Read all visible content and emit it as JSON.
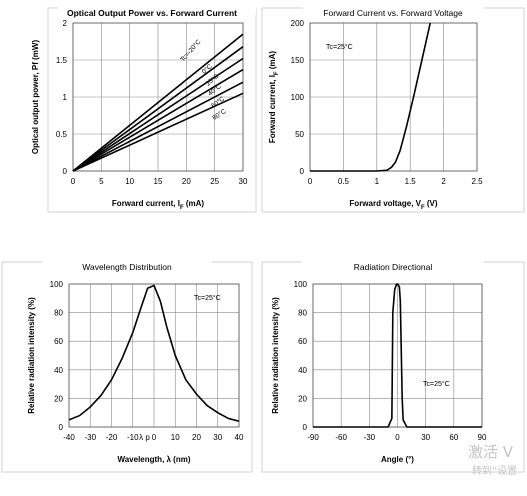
{
  "chart_data": [
    {
      "type": "line",
      "title": "Optical Output Power vs. Forward Current",
      "xlabel": "Forward current, I",
      "xlabel_sub": "F",
      "xlabel_tail": " (mA)",
      "ylabel": "Optical output power, Pf (mW)",
      "xlim": [
        0,
        30
      ],
      "ylim": [
        0,
        2
      ],
      "xticks": [
        "0",
        "5",
        "10",
        "15",
        "20",
        "25",
        "30"
      ],
      "yticks": [
        "0",
        "0.5",
        "1",
        "1.5",
        "2"
      ],
      "grid": true,
      "series": [
        {
          "name": "Tc=-20°C",
          "x": [
            0,
            30
          ],
          "y": [
            0,
            1.85
          ]
        },
        {
          "name": "0°C",
          "x": [
            0,
            30
          ],
          "y": [
            0,
            1.68
          ]
        },
        {
          "name": "25°C",
          "x": [
            0,
            30
          ],
          "y": [
            0,
            1.52
          ]
        },
        {
          "name": "40°C",
          "x": [
            0,
            30
          ],
          "y": [
            0,
            1.37
          ]
        },
        {
          "name": "60°C",
          "x": [
            0,
            30
          ],
          "y": [
            0,
            1.2
          ]
        },
        {
          "name": "80°C",
          "x": [
            0,
            30
          ],
          "y": [
            0,
            1.05
          ]
        }
      ]
    },
    {
      "type": "line",
      "title": "Forward Current vs. Forward Voltage",
      "xlabel": "Forward voltage, V",
      "xlabel_sub": "F",
      "xlabel_tail": " (V)",
      "ylabel": "Forward current, I",
      "ylabel_sub": "F",
      "ylabel_tail": " (mA)",
      "annotation": "Tc=25°C",
      "xlim": [
        0,
        2.5
      ],
      "ylim": [
        0,
        200
      ],
      "xticks": [
        "0",
        "0.5",
        "1",
        "1.5",
        "2",
        "2.5"
      ],
      "yticks": [
        "0",
        "50",
        "100",
        "150",
        "200"
      ],
      "grid": true,
      "series": [
        {
          "x": [
            0,
            1.0,
            1.15,
            1.22,
            1.28,
            1.35,
            1.45,
            1.55,
            1.65,
            1.75,
            1.8
          ],
          "y": [
            0,
            0,
            1,
            5,
            12,
            28,
            62,
            100,
            140,
            180,
            200
          ]
        }
      ]
    },
    {
      "type": "line",
      "title": "Wavelength Distribution",
      "xlabel": "Wavelength, λ (nm)",
      "ylabel": "Relative radiation intensity (%)",
      "annotation": "Tc=25°C",
      "xlim": [
        -40,
        40
      ],
      "ylim": [
        0,
        100
      ],
      "xticks": [
        "-40",
        "-30",
        "-20",
        "-10",
        "λ p",
        "0",
        "10",
        "20",
        "30",
        "40"
      ],
      "xtick_positions": [
        -40,
        -30,
        -20,
        -10,
        -4.5,
        0,
        10,
        20,
        30,
        40
      ],
      "yticks": [
        "0",
        "20",
        "40",
        "60",
        "80",
        "100"
      ],
      "grid": true,
      "series": [
        {
          "x": [
            -40,
            -35,
            -30,
            -25,
            -20,
            -15,
            -10,
            -6,
            -3,
            0,
            3,
            6,
            10,
            15,
            20,
            25,
            30,
            35,
            40
          ],
          "y": [
            5,
            8,
            14,
            22,
            33,
            48,
            66,
            84,
            97,
            99,
            88,
            70,
            50,
            33,
            23,
            15,
            10,
            6,
            4
          ]
        }
      ]
    },
    {
      "type": "line",
      "title": "Radiation Directional",
      "xlabel": "Angle (°)",
      "ylabel": "Relative radiation intensity (%)",
      "annotation": "Tc=25°C",
      "xlim": [
        -90,
        90
      ],
      "ylim": [
        0,
        100
      ],
      "xticks": [
        "-90",
        "-60",
        "-30",
        "0",
        "30",
        "60",
        "90"
      ],
      "yticks": [
        "0",
        "20",
        "40",
        "60",
        "80",
        "100"
      ],
      "grid": true,
      "series": [
        {
          "x": [
            -90,
            -10,
            -6,
            -5,
            -3,
            -1,
            0,
            2,
            3,
            5,
            6,
            10,
            90
          ],
          "y": [
            0,
            0,
            6,
            80,
            96,
            100,
            100,
            98,
            88,
            20,
            5,
            0,
            0
          ]
        }
      ]
    }
  ],
  "watermark": {
    "line1": "激活 V",
    "line2": "转到“设置"
  }
}
